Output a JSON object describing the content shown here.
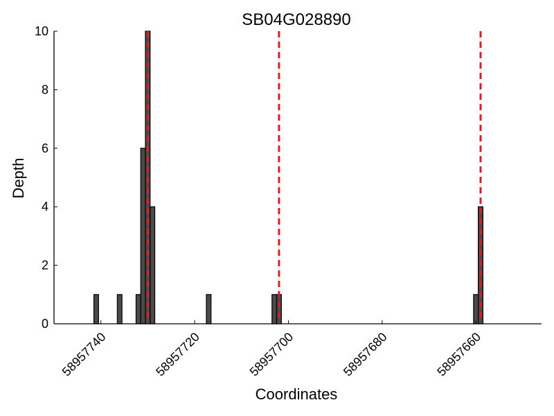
{
  "chart_data": {
    "type": "bar",
    "title": "SB04G028890",
    "xlabel": "Coordinates",
    "ylabel": "Depth",
    "x_reversed": true,
    "xlim": [
      58957750,
      58957646
    ],
    "ylim": [
      0,
      10
    ],
    "xticks": [
      58957740,
      58957720,
      58957700,
      58957680,
      58957660
    ],
    "yticks": [
      0,
      2,
      4,
      6,
      8,
      10
    ],
    "x": [
      58957741,
      58957736,
      58957732,
      58957731,
      58957730,
      58957729,
      58957717,
      58957703,
      58957702,
      58957660,
      58957659
    ],
    "values": [
      1,
      1,
      1,
      6,
      10,
      4,
      1,
      1,
      1,
      1,
      4
    ],
    "bar_color": "#4a4a4a",
    "markers": [
      58957730,
      58957702,
      58957659
    ],
    "marker_color": "#e41a1c",
    "grid": false
  }
}
